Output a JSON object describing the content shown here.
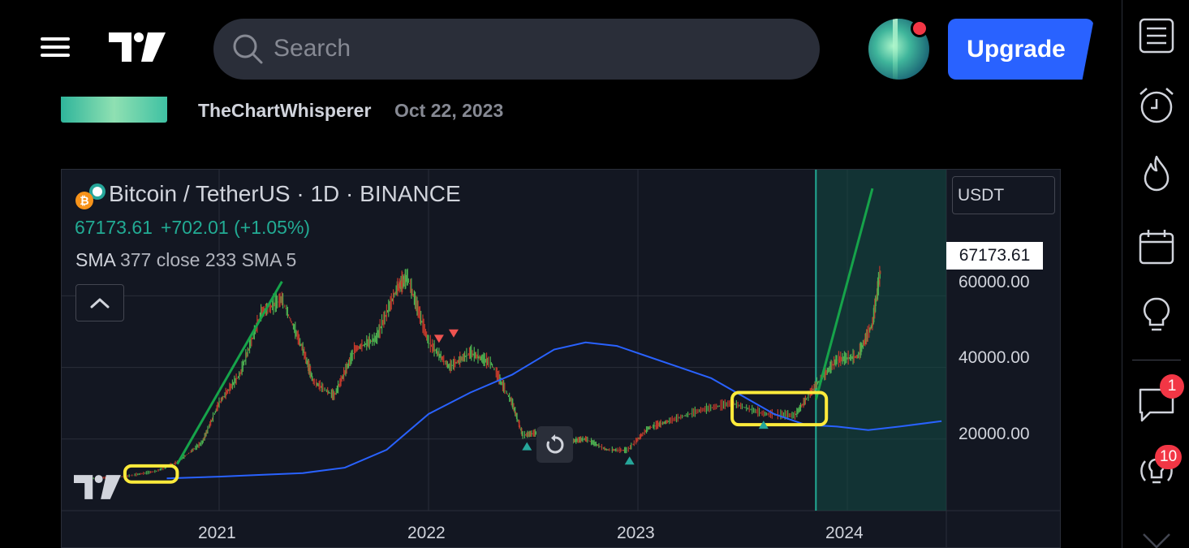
{
  "header": {
    "search_placeholder": "Search",
    "upgrade_label": "Upgrade",
    "icons": [
      "menu-icon",
      "tradingview-logo",
      "search-icon",
      "avatar",
      "notification-dot"
    ]
  },
  "author": {
    "name": "TheChartWhisperer",
    "date": "Oct 22, 2023"
  },
  "chart": {
    "symbol": "Bitcoin / TetherUS · 1D · BINANCE",
    "price": "67173.61",
    "change": "+702.01 (+1.05%)",
    "indicator_name": "SMA",
    "indicator_params": "377 close 233 SMA 5",
    "currency": "USDT",
    "last_price_label": "67173.61",
    "y_ticks": [
      "60000.00",
      "40000.00",
      "20000.00"
    ],
    "x_ticks": [
      "2021",
      "2022",
      "2023",
      "2024"
    ],
    "colors": {
      "up": "#22ab94",
      "candle_up": "#26a69a",
      "candle_down": "#ef5350",
      "sma": "#2962ff",
      "trendline": "#16a34a",
      "highlight": "#ffeb3b"
    }
  },
  "chart_data": {
    "type": "line",
    "title": "Bitcoin / TetherUS · 1D · BINANCE",
    "x_unit": "year",
    "ylim": [
      0,
      90000
    ],
    "y_ticks": [
      20000,
      40000,
      60000
    ],
    "x_ticks": [
      "2021",
      "2022",
      "2023",
      "2024"
    ],
    "series": [
      {
        "name": "",
        "x": [
          2020.4,
          2020.55,
          2020.7,
          2020.8,
          2020.92,
          2021.0,
          2021.1,
          2021.2,
          2021.3,
          2021.4,
          2021.45,
          2021.55,
          2021.65,
          2021.75,
          2021.85,
          2021.9,
          2022.0,
          2022.1,
          2022.2,
          2022.3,
          2022.4,
          2022.45,
          2022.55,
          2022.65,
          2022.75,
          2022.85,
          2022.95,
          2023.05,
          2023.15,
          2023.3,
          2023.45,
          2023.6,
          2023.75,
          2023.85,
          2023.95,
          2024.05,
          2024.12,
          2024.16
        ],
        "values": [
          9000,
          9500,
          11000,
          13500,
          19000,
          30000,
          38000,
          55000,
          59000,
          45000,
          36000,
          32000,
          45000,
          48000,
          62000,
          65000,
          47000,
          40000,
          44000,
          41000,
          30000,
          21000,
          22000,
          19000,
          20000,
          17000,
          16800,
          23000,
          25000,
          28000,
          30000,
          27000,
          26500,
          35000,
          42000,
          43000,
          52000,
          67173.61
        ]
      },
      {
        "name": "SMA",
        "x": [
          2020.75,
          2021.0,
          2021.2,
          2021.4,
          2021.6,
          2021.8,
          2022.0,
          2022.2,
          2022.4,
          2022.6,
          2022.75,
          2022.9,
          2023.05,
          2023.2,
          2023.35,
          2023.5,
          2023.65,
          2023.8,
          2023.95,
          2024.1,
          2024.25,
          2024.45
        ],
        "values": [
          9000,
          9500,
          10000,
          10500,
          12000,
          17000,
          27000,
          33000,
          38000,
          45000,
          47000,
          46000,
          43000,
          40000,
          37000,
          32000,
          27000,
          24000,
          23500,
          22500,
          23500,
          25000
        ]
      }
    ],
    "annotations": [
      {
        "type": "highlight",
        "x": [
          2020.55,
          2020.8
        ],
        "y": [
          8000,
          12500
        ]
      },
      {
        "type": "highlight",
        "x": [
          2023.45,
          2023.9
        ],
        "y": [
          24000,
          33000
        ]
      },
      {
        "type": "trendline",
        "from": [
          2020.8,
          13000
        ],
        "to": [
          2021.3,
          64000
        ]
      },
      {
        "type": "trendline",
        "from": [
          2023.85,
          31000
        ],
        "to": [
          2024.12,
          90000
        ]
      },
      {
        "type": "vline",
        "x": 2023.85
      }
    ]
  },
  "sidebar": {
    "icons": [
      "watchlist-icon",
      "alarm-clock-icon",
      "hot-lists-icon",
      "calendar-icon",
      "ideas-bulb-icon",
      "chat-icon",
      "streams-icon",
      "more-icon"
    ],
    "chat_badge": "1",
    "streams_badge": "10"
  }
}
